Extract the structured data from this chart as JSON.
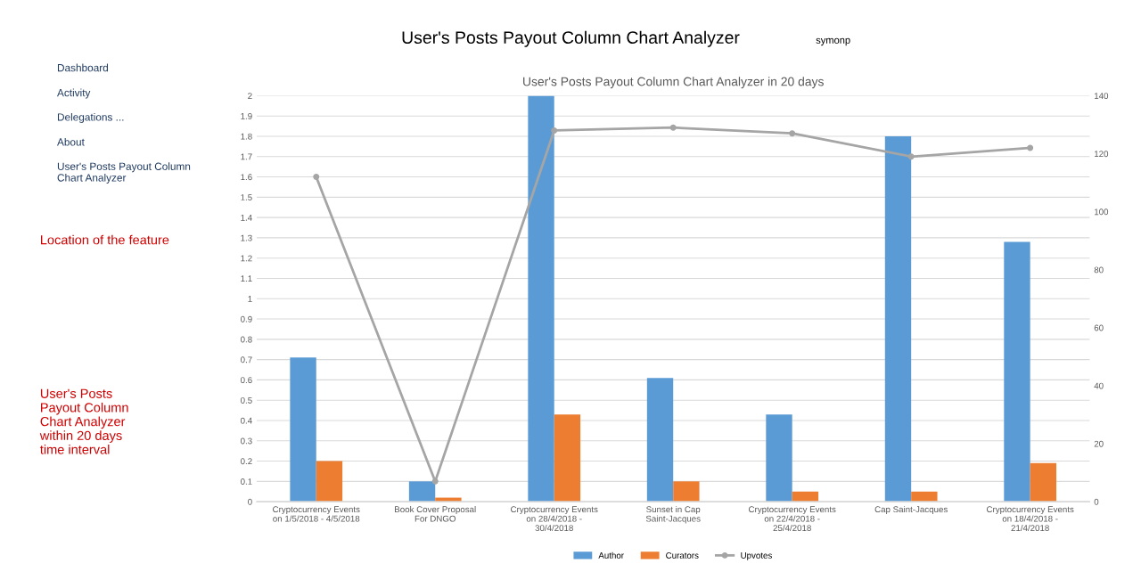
{
  "chart_data": {
    "type": "bar",
    "title": "User's Posts Payout Column Chart Analyzer",
    "subtitle": "User's Posts Payout Column Chart Analyzer in 20 days",
    "categories": [
      "Cryptocurrency Events on 1/5/2018 - 4/5/2018",
      "Book Cover Proposal For DNGO",
      "Cryptocurrency Events on 28/4/2018 - 30/4/2018",
      "Sunset in Cap Saint-Jacques",
      "Cryptocurrency Events on 22/4/2018 - 25/4/2018",
      "Cap Saint-Jacques",
      "Cryptocurrency Events on 18/4/2018 - 21/4/2018"
    ],
    "series": [
      {
        "name": "Author",
        "color": "#5b9bd5",
        "values": [
          0.71,
          0.1,
          2.0,
          0.61,
          0.43,
          1.8,
          1.28
        ]
      },
      {
        "name": "Curators",
        "color": "#ed7d31",
        "values": [
          0.2,
          0.02,
          0.43,
          0.1,
          0.05,
          0.05,
          0.19
        ]
      },
      {
        "name": "Upvotes",
        "type": "line",
        "axis": "y2",
        "color": "#a5a5a5",
        "values": [
          112,
          7,
          128,
          129,
          127,
          119,
          122
        ]
      }
    ],
    "ylim": [
      0,
      2
    ],
    "yticks": [
      0,
      0.1,
      0.2,
      0.3,
      0.4,
      0.5,
      0.6,
      0.7,
      0.8,
      0.9,
      1,
      1.1,
      1.2,
      1.3,
      1.4,
      1.5,
      1.6,
      1.7,
      1.8,
      1.9,
      2
    ],
    "y2lim": [
      0,
      140
    ],
    "y2ticks": [
      0,
      20,
      40,
      60,
      80,
      100,
      120,
      140
    ],
    "grid": "y",
    "legend": "bottom",
    "marker": "circle",
    "annotations": [
      "Dashboard",
      "Activity",
      "Delegations ...",
      "About",
      "User's Posts Payout Column Chart Analyzer",
      "Location of the feature",
      "User's Posts Payout Column Chart Analyzer within 20 days time interval",
      "symonp"
    ]
  }
}
